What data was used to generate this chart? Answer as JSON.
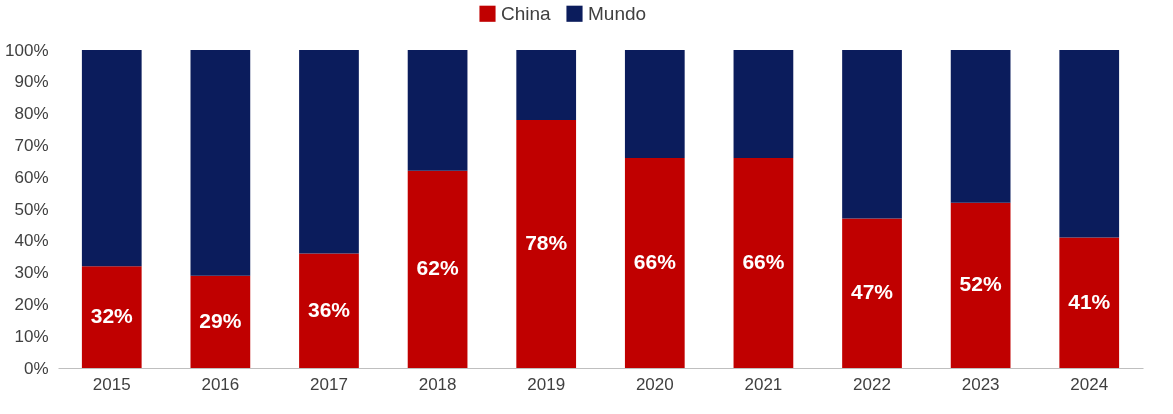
{
  "chart_data": {
    "type": "bar",
    "stacked": true,
    "legend": "top",
    "categories": [
      "2015",
      "2016",
      "2017",
      "2018",
      "2019",
      "2020",
      "2021",
      "2022",
      "2023",
      "2024"
    ],
    "ylim": [
      0,
      100
    ],
    "yticks": [
      {
        "value": 0,
        "label": "0%"
      },
      {
        "value": 10,
        "label": "10%"
      },
      {
        "value": 20,
        "label": "20%"
      },
      {
        "value": 30,
        "label": "30%"
      },
      {
        "value": 40,
        "label": "40%"
      },
      {
        "value": 50,
        "label": "50%"
      },
      {
        "value": 60,
        "label": "60%"
      },
      {
        "value": 70,
        "label": "70%"
      },
      {
        "value": 80,
        "label": "80%"
      },
      {
        "value": 90,
        "label": "90%"
      },
      {
        "value": 100,
        "label": "100%"
      }
    ],
    "series": [
      {
        "name": "China",
        "color": "#c00000",
        "values": [
          32,
          29,
          36,
          62,
          78,
          66,
          66,
          47,
          52,
          41
        ],
        "value_labels": [
          "32%",
          "29%",
          "36%",
          "62%",
          "78%",
          "66%",
          "66%",
          "47%",
          "52%",
          "41%"
        ]
      },
      {
        "name": "Mundo",
        "color": "#0b1c5c",
        "values": [
          68,
          71,
          64,
          38,
          22,
          34,
          34,
          53,
          48,
          59
        ]
      }
    ]
  }
}
